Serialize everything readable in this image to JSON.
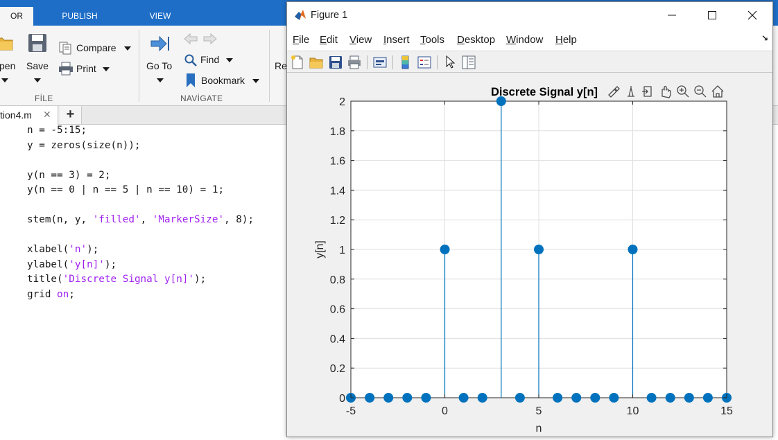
{
  "ribbon": {
    "tabs": [
      {
        "label": "OR",
        "active": true
      },
      {
        "label": "PUBLISH"
      },
      {
        "label": "VIEW"
      }
    ],
    "file_section": {
      "open_label": "pen",
      "save_label": "Save",
      "compare_label": "Compare",
      "print_label": "Print",
      "section_label": "FİLE"
    },
    "navigate_section": {
      "goto_label": "Go To",
      "find_label": "Find",
      "bookmark_label": "Bookmark",
      "section_label": "NAVİGATE"
    },
    "run_partial_label": "Re"
  },
  "editor": {
    "file_tab": "tion4.m",
    "close_glyph": "✕",
    "add_glyph": "+",
    "code": [
      [
        {
          "t": "n = -5:15;"
        }
      ],
      [
        {
          "t": "y = zeros(size(n));"
        }
      ],
      [],
      [
        {
          "t": "y(n == 3) = 2;"
        }
      ],
      [
        {
          "t": "y(n == 0 | n == 5 | n == 10) = 1;"
        }
      ],
      [],
      [
        {
          "t": "stem(n, y, "
        },
        {
          "t": "'filled'",
          "s": 1
        },
        {
          "t": ", "
        },
        {
          "t": "'MarkerSize'",
          "s": 1
        },
        {
          "t": ", 8);"
        }
      ],
      [],
      [
        {
          "t": "xlabel("
        },
        {
          "t": "'n'",
          "s": 1
        },
        {
          "t": ");"
        }
      ],
      [
        {
          "t": "ylabel("
        },
        {
          "t": "'y[n]'",
          "s": 1
        },
        {
          "t": ");"
        }
      ],
      [
        {
          "t": "title("
        },
        {
          "t": "'Discrete Signal y[n]'",
          "s": 1
        },
        {
          "t": ");"
        }
      ],
      [
        {
          "t": "grid "
        },
        {
          "t": "on",
          "s": 1
        },
        {
          "t": ";"
        }
      ]
    ]
  },
  "figure": {
    "title": "Figure 1",
    "menu": [
      {
        "u": "F",
        "rest": "ile"
      },
      {
        "u": "E",
        "rest": "dit"
      },
      {
        "u": "V",
        "rest": "iew"
      },
      {
        "u": "I",
        "rest": "nsert"
      },
      {
        "u": "T",
        "rest": "ools"
      },
      {
        "u": "D",
        "rest": "esktop"
      },
      {
        "u": "W",
        "rest": "indow"
      },
      {
        "u": "H",
        "rest": "elp"
      }
    ],
    "dock_glyph": "↘"
  },
  "colors": {
    "accent": "#1e6ec7",
    "stem": "#0072bd",
    "string": "#a020f0"
  },
  "chart_data": {
    "type": "stem",
    "title": "Discrete Signal y[n]",
    "xlabel": "n",
    "ylabel": "y[n]",
    "x": [
      -5,
      -4,
      -3,
      -2,
      -1,
      0,
      1,
      2,
      3,
      4,
      5,
      6,
      7,
      8,
      9,
      10,
      11,
      12,
      13,
      14,
      15
    ],
    "y": [
      0,
      0,
      0,
      0,
      0,
      1,
      0,
      0,
      2,
      0,
      1,
      0,
      0,
      0,
      0,
      1,
      0,
      0,
      0,
      0,
      0
    ],
    "xlim": [
      -5,
      15
    ],
    "ylim": [
      0,
      2
    ],
    "xticks": [
      -5,
      0,
      5,
      10,
      15
    ],
    "yticks": [
      0,
      0.2,
      0.4,
      0.6,
      0.8,
      1,
      1.2,
      1.4,
      1.6,
      1.8,
      2
    ],
    "ytick_labels": [
      "0",
      "0.2",
      "0.4",
      "0.6",
      "0.8",
      "1",
      "1.2",
      "1.4",
      "1.6",
      "1.8",
      "2"
    ],
    "grid": true,
    "marker": "filled"
  }
}
